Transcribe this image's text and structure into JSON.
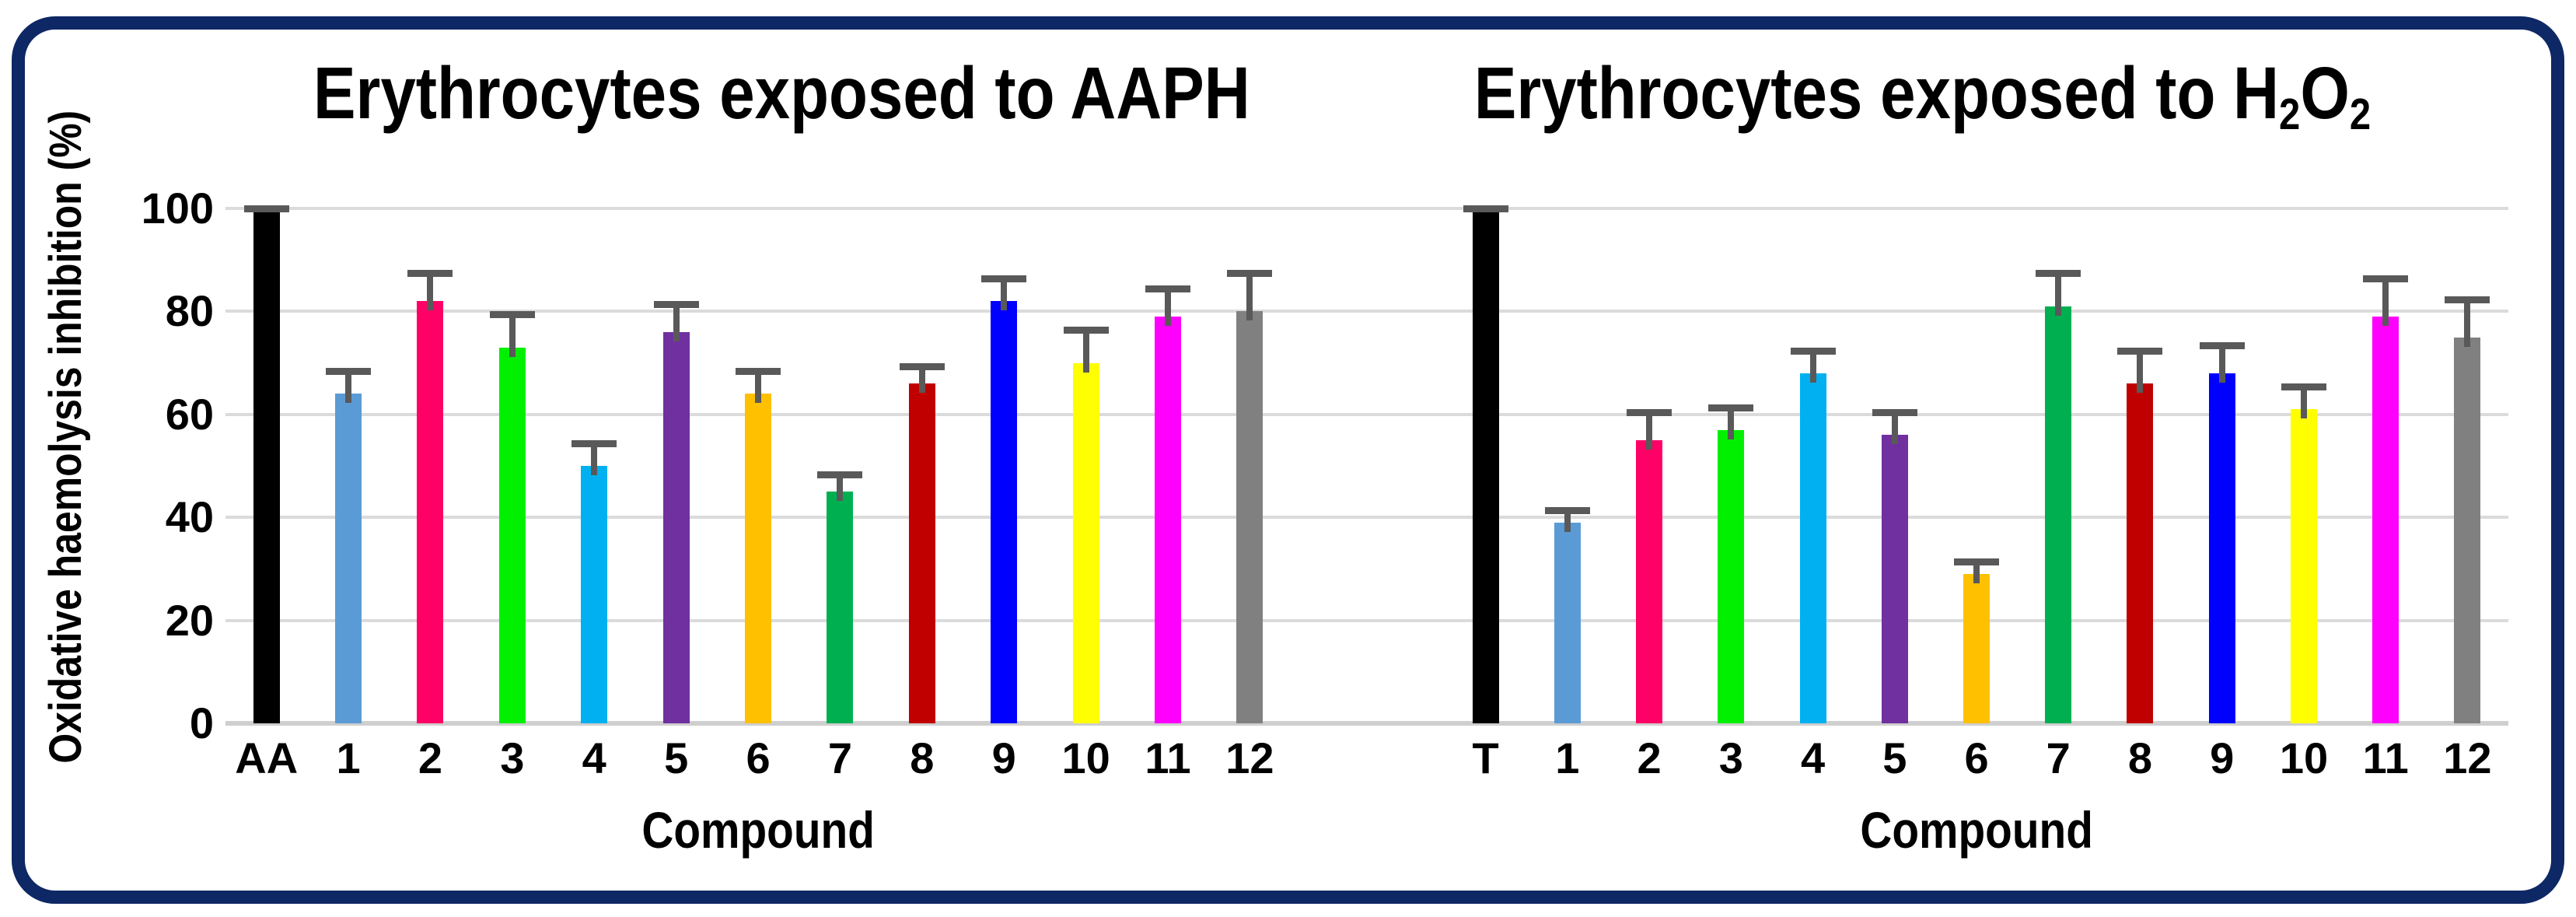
{
  "frame": {
    "border_color": "#0E2765"
  },
  "axis": {
    "y_title": "Oxidative haemolysis inhibition (%)",
    "x_title": "Compound",
    "tick_labels": [
      "100",
      "80",
      "60",
      "40",
      "20",
      "0"
    ]
  },
  "palette": {
    "error_bar": "#595959",
    "gridline": "#DBDBDB",
    "baseline": "#CFCFCF"
  },
  "chart_data": [
    {
      "type": "bar",
      "title": "Erythrocytes exposed to AAPH",
      "title_parts": [
        {
          "text": "Erythrocytes exposed to AAPH",
          "sub": false
        }
      ],
      "xlabel": "Compound",
      "ylabel": "Oxidative haemolysis inhibition (%)",
      "ylim": [
        0,
        100
      ],
      "yticks": [
        0,
        20,
        40,
        60,
        80,
        100
      ],
      "grid": true,
      "legend": false,
      "categories": [
        "AA",
        "1",
        "2",
        "3",
        "4",
        "5",
        "6",
        "7",
        "8",
        "9",
        "10",
        "11",
        "12"
      ],
      "values": [
        100,
        64,
        82,
        73,
        50,
        76,
        64,
        45,
        66,
        82,
        70,
        79,
        80
      ],
      "errors": [
        0.8,
        5,
        6,
        7,
        5,
        6,
        5,
        4,
        4,
        5,
        7,
        6,
        8
      ],
      "colors": [
        "#000000",
        "#5B9BD5",
        "#FF0066",
        "#00F000",
        "#00B0F0",
        "#7030A0",
        "#FFC000",
        "#00B050",
        "#C00000",
        "#0000FF",
        "#FFFF00",
        "#FF00FF",
        "#808080"
      ]
    },
    {
      "type": "bar",
      "title": "Erythrocytes exposed to H2O2",
      "title_parts": [
        {
          "text": "Erythrocytes exposed to H",
          "sub": false
        },
        {
          "text": "2",
          "sub": true
        },
        {
          "text": "O",
          "sub": false
        },
        {
          "text": "2",
          "sub": true
        }
      ],
      "xlabel": "Compound",
      "ylabel": "Oxidative haemolysis inhibition (%)",
      "ylim": [
        0,
        100
      ],
      "yticks": [
        0,
        20,
        40,
        60,
        80,
        100
      ],
      "grid": true,
      "legend": false,
      "categories": [
        "T",
        "1",
        "2",
        "3",
        "4",
        "5",
        "6",
        "7",
        "8",
        "9",
        "10",
        "11",
        "12"
      ],
      "values": [
        100,
        39,
        55,
        57,
        68,
        56,
        29,
        81,
        66,
        68,
        61,
        79,
        75
      ],
      "errors": [
        0.8,
        3,
        6,
        5,
        5,
        5,
        3,
        7,
        7,
        6,
        5,
        8,
        8
      ],
      "colors": [
        "#000000",
        "#5B9BD5",
        "#FF0066",
        "#00F000",
        "#00B0F0",
        "#7030A0",
        "#FFC000",
        "#00B050",
        "#C00000",
        "#0000FF",
        "#FFFF00",
        "#FF00FF",
        "#808080"
      ]
    }
  ]
}
